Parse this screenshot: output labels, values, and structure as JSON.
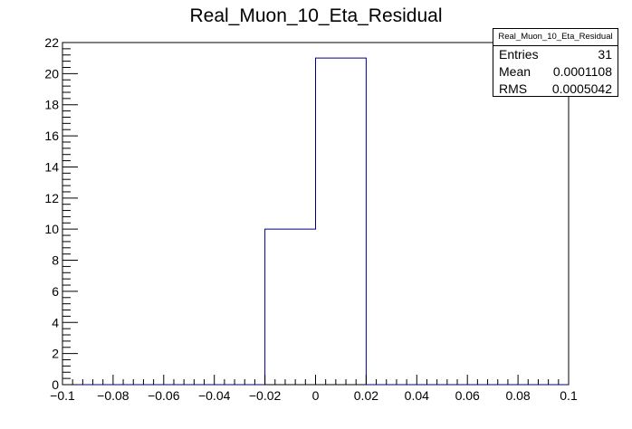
{
  "chart_data": {
    "type": "histogram",
    "title": "Real_Muon_10_Eta_Residual",
    "xlabel": "",
    "ylabel": "",
    "xlim": [
      -0.1,
      0.1
    ],
    "ylim": [
      0,
      22
    ],
    "bin_edges": [
      -0.1,
      -0.08,
      -0.06,
      -0.04,
      -0.02,
      0,
      0.02,
      0.04,
      0.06,
      0.08,
      0.1
    ],
    "values": [
      0,
      0,
      0,
      0,
      10,
      21,
      0,
      0,
      0,
      0
    ],
    "x_ticks": [
      "−0.1",
      "−0.08",
      "−0.06",
      "−0.04",
      "−0.02",
      "0",
      "0.02",
      "0.04",
      "0.06",
      "0.08",
      "0.1"
    ],
    "x_tick_values": [
      -0.1,
      -0.08,
      -0.06,
      -0.04,
      -0.02,
      0,
      0.02,
      0.04,
      0.06,
      0.08,
      0.1
    ],
    "y_ticks": [
      "0",
      "2",
      "4",
      "6",
      "8",
      "10",
      "12",
      "14",
      "16",
      "18",
      "20",
      "22"
    ],
    "y_tick_values": [
      0,
      2,
      4,
      6,
      8,
      10,
      12,
      14,
      16,
      18,
      20,
      22
    ],
    "line_color": "#00007f",
    "grid": false,
    "legend_placement": "top-right",
    "stats": {
      "title": "Real_Muon_10_Eta_Residual",
      "rows": [
        {
          "label": "Entries",
          "value": "31"
        },
        {
          "label": "Mean",
          "value": "0.0001108"
        },
        {
          "label": "RMS",
          "value": "0.0005042"
        }
      ]
    }
  }
}
